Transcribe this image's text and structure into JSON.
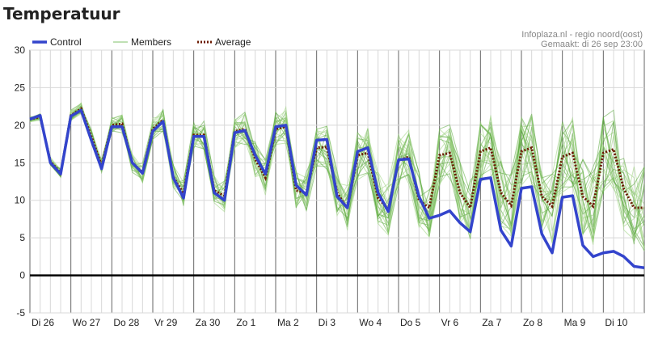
{
  "chart_data": {
    "type": "line",
    "title": "Temperatuur",
    "source_line1": "Infoplaza.nl - regio noord(oost)",
    "source_line2": "Gemaakt: di 26 sep 23:00",
    "ylim": [
      -5,
      30
    ],
    "yticks": [
      -5,
      0,
      5,
      10,
      15,
      20,
      25,
      30
    ],
    "x_day_labels": [
      "Di 26",
      "Wo 27",
      "Do 28",
      "Vr 29",
      "Za 30",
      "Zo 1",
      "Ma 2",
      "Di 3",
      "Wo 4",
      "Do 5",
      "Vr 6",
      "Za 7",
      "Zo 8",
      "Ma 9",
      "Di 10"
    ],
    "legend": [
      {
        "name": "Control",
        "color": "#3344cc"
      },
      {
        "name": "Members",
        "color": "#7fc06a"
      },
      {
        "name": "Average",
        "color": "#6b1a00"
      }
    ],
    "grid": true,
    "x_units": "days since Di 26 00:00 (6-hourly steps)",
    "x": [
      0,
      0.25,
      0.5,
      0.75,
      1,
      1.25,
      1.5,
      1.75,
      2,
      2.25,
      2.5,
      2.75,
      3,
      3.25,
      3.5,
      3.75,
      4,
      4.25,
      4.5,
      4.75,
      5,
      5.25,
      5.5,
      5.75,
      6,
      6.25,
      6.5,
      6.75,
      7,
      7.25,
      7.5,
      7.75,
      8,
      8.25,
      8.5,
      8.75,
      9,
      9.25,
      9.5,
      9.75,
      10,
      10.25,
      10.5,
      10.75,
      11,
      11.25,
      11.5,
      11.75,
      12,
      12.25,
      12.5,
      12.75,
      13,
      13.25,
      13.5,
      13.75,
      14,
      14.25,
      14.5,
      14.75,
      15
    ],
    "series": [
      {
        "name": "Control",
        "color": "#3344cc",
        "values": [
          20.8,
          21.3,
          15.0,
          13.5,
          21.2,
          22.0,
          18.0,
          14.2,
          19.8,
          19.8,
          15.0,
          13.6,
          19.2,
          20.5,
          13.0,
          10.3,
          18.5,
          18.5,
          11.0,
          10.0,
          19.0,
          19.3,
          16.0,
          13.5,
          19.8,
          20.0,
          12.0,
          10.7,
          18.0,
          18.1,
          10.5,
          9.0,
          16.5,
          17.0,
          11.0,
          8.5,
          15.4,
          15.5,
          10.5,
          7.6,
          8.0,
          8.6,
          7.0,
          5.8,
          12.8,
          13.0,
          6.0,
          3.9,
          11.6,
          11.8,
          5.5,
          3.0,
          10.4,
          10.6,
          4.0,
          2.5,
          3.0,
          3.2,
          2.5,
          1.2,
          1.0
        ]
      },
      {
        "name": "Average",
        "color": "#6b1a00",
        "values": [
          20.8,
          21.1,
          15.2,
          13.6,
          21.3,
          22.2,
          18.5,
          14.6,
          20.0,
          20.2,
          15.0,
          13.7,
          19.5,
          20.7,
          13.1,
          10.9,
          18.7,
          18.7,
          11.3,
          10.6,
          19.2,
          19.5,
          15.5,
          13.0,
          19.5,
          19.8,
          11.3,
          11.0,
          17.0,
          17.1,
          11.0,
          8.9,
          16.0,
          16.3,
          10.3,
          8.8,
          15.3,
          15.8,
          10.0,
          9.0,
          16.0,
          16.3,
          11.0,
          9.0,
          16.5,
          17.0,
          11.0,
          9.3,
          16.5,
          17.0,
          10.5,
          9.2,
          15.8,
          16.3,
          10.5,
          9.2,
          16.3,
          16.8,
          11.5,
          9.0,
          9.0
        ]
      }
    ]
  }
}
